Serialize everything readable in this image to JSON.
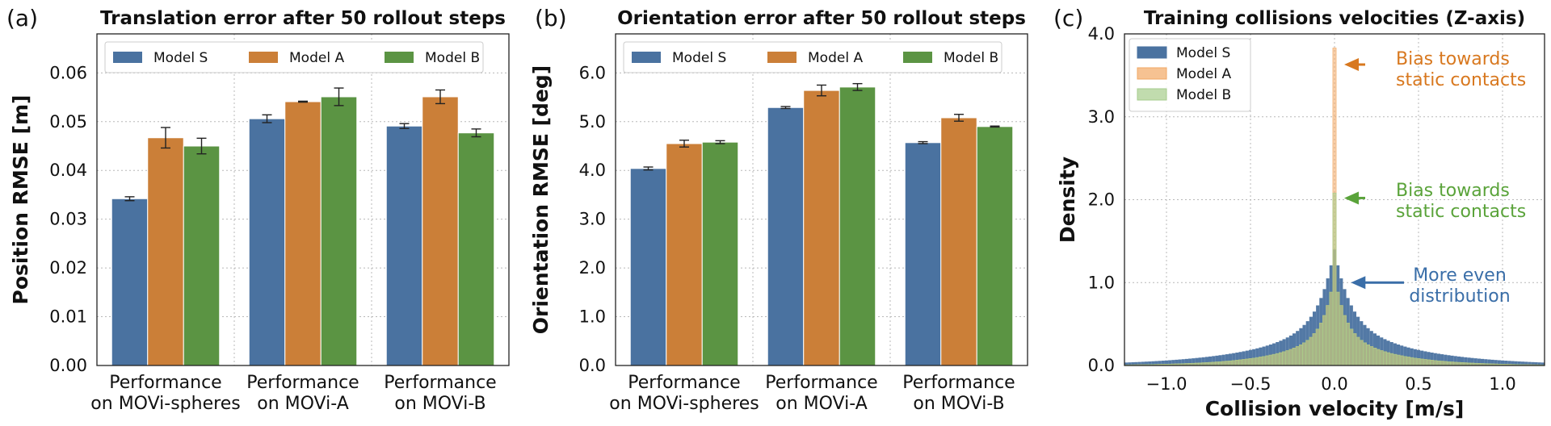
{
  "chart_data": [
    {
      "panel": "(a)",
      "type": "bar",
      "title": "Translation error after 50 rollout steps",
      "ylabel": "Position RMSE [m]",
      "xlabel": "",
      "ylim": [
        0,
        0.068
      ],
      "yticks": [
        0.0,
        0.01,
        0.02,
        0.03,
        0.04,
        0.05,
        0.06
      ],
      "ytick_labels": [
        "0.00",
        "0.01",
        "0.02",
        "0.03",
        "0.04",
        "0.05",
        "0.06"
      ],
      "grid": true,
      "legend": "top",
      "categories": [
        [
          "Performance",
          "on MOVi-spheres"
        ],
        [
          "Performance",
          "on MOVi-A"
        ],
        [
          "Performance",
          "on MOVi-B"
        ]
      ],
      "series": [
        {
          "name": "Model S",
          "color": "#4a72a0",
          "values": [
            0.0342,
            0.0506,
            0.0491
          ],
          "errors": [
            0.0004,
            0.0008,
            0.0005
          ]
        },
        {
          "name": "Model A",
          "color": "#cb7f38",
          "values": [
            0.0467,
            0.0541,
            0.0551
          ],
          "errors": [
            0.0021,
            0.0001,
            0.0014
          ]
        },
        {
          "name": "Model B",
          "color": "#5b9443",
          "values": [
            0.045,
            0.0551,
            0.0477
          ],
          "errors": [
            0.0016,
            0.0018,
            0.0008
          ]
        }
      ]
    },
    {
      "panel": "(b)",
      "type": "bar",
      "title": "Orientation error after 50 rollout steps",
      "ylabel": "Orientation RMSE [deg]",
      "xlabel": "",
      "ylim": [
        0,
        6.8
      ],
      "yticks": [
        0,
        1,
        2,
        3,
        4,
        5,
        6
      ],
      "ytick_labels": [
        "0.0",
        "1.0",
        "2.0",
        "3.0",
        "4.0",
        "5.0",
        "6.0"
      ],
      "grid": true,
      "legend": "top",
      "categories": [
        [
          "Performance",
          "on MOVi-spheres"
        ],
        [
          "Performance",
          "on MOVi-A"
        ],
        [
          "Performance",
          "on MOVi-B"
        ]
      ],
      "series": [
        {
          "name": "Model S",
          "color": "#4a72a0",
          "values": [
            4.04,
            5.29,
            4.57
          ],
          "errors": [
            0.03,
            0.02,
            0.02
          ]
        },
        {
          "name": "Model A",
          "color": "#cb7f38",
          "values": [
            4.55,
            5.64,
            5.08
          ],
          "errors": [
            0.07,
            0.11,
            0.07
          ]
        },
        {
          "name": "Model B",
          "color": "#5b9443",
          "values": [
            4.58,
            5.71,
            4.9
          ],
          "errors": [
            0.03,
            0.07,
            0.01
          ]
        }
      ]
    },
    {
      "panel": "(c)",
      "type": "histogram",
      "title": "Training collisions velocities (Z-axis)",
      "xlabel": "Collision velocity [m/s]",
      "ylabel": "Density",
      "xlim": [
        -1.25,
        1.25
      ],
      "ylim": [
        0,
        4.0
      ],
      "xticks": [
        -1.0,
        -0.5,
        0.0,
        0.5,
        1.0
      ],
      "xtick_labels": [
        "−1.0",
        "−0.5",
        "0.0",
        "0.5",
        "1.0"
      ],
      "yticks": [
        0,
        1,
        2,
        3,
        4
      ],
      "ytick_labels": [
        "0.0",
        "1.0",
        "2.0",
        "3.0",
        "4.0"
      ],
      "grid": true,
      "legend": "top-left",
      "bin_width": 0.02,
      "series": [
        {
          "name": "Model S",
          "color": "#4a72a0",
          "scale": 0.45,
          "peak_value": 1.4,
          "center_value": 1.4
        },
        {
          "name": "Model A",
          "color": "#f2a864",
          "scale": 0.3,
          "peak_value": 1.1,
          "center_value": 3.83
        },
        {
          "name": "Model B",
          "color": "#a6cd8c",
          "scale": 0.3,
          "peak_value": 1.1,
          "center_value": 2.08
        }
      ],
      "annotations": [
        {
          "lines": [
            "Bias towards",
            "static contacts"
          ],
          "color": "#d8781f",
          "target_value": [
            0.0,
            3.63
          ]
        },
        {
          "lines": [
            "Bias towards",
            "static contacts"
          ],
          "color": "#5aa33a",
          "target_value": [
            0.0,
            2.02
          ]
        },
        {
          "lines": [
            "More even",
            "distribution"
          ],
          "color": "#3a6ea8",
          "target_value": [
            0.04,
            1.0
          ]
        }
      ]
    }
  ]
}
